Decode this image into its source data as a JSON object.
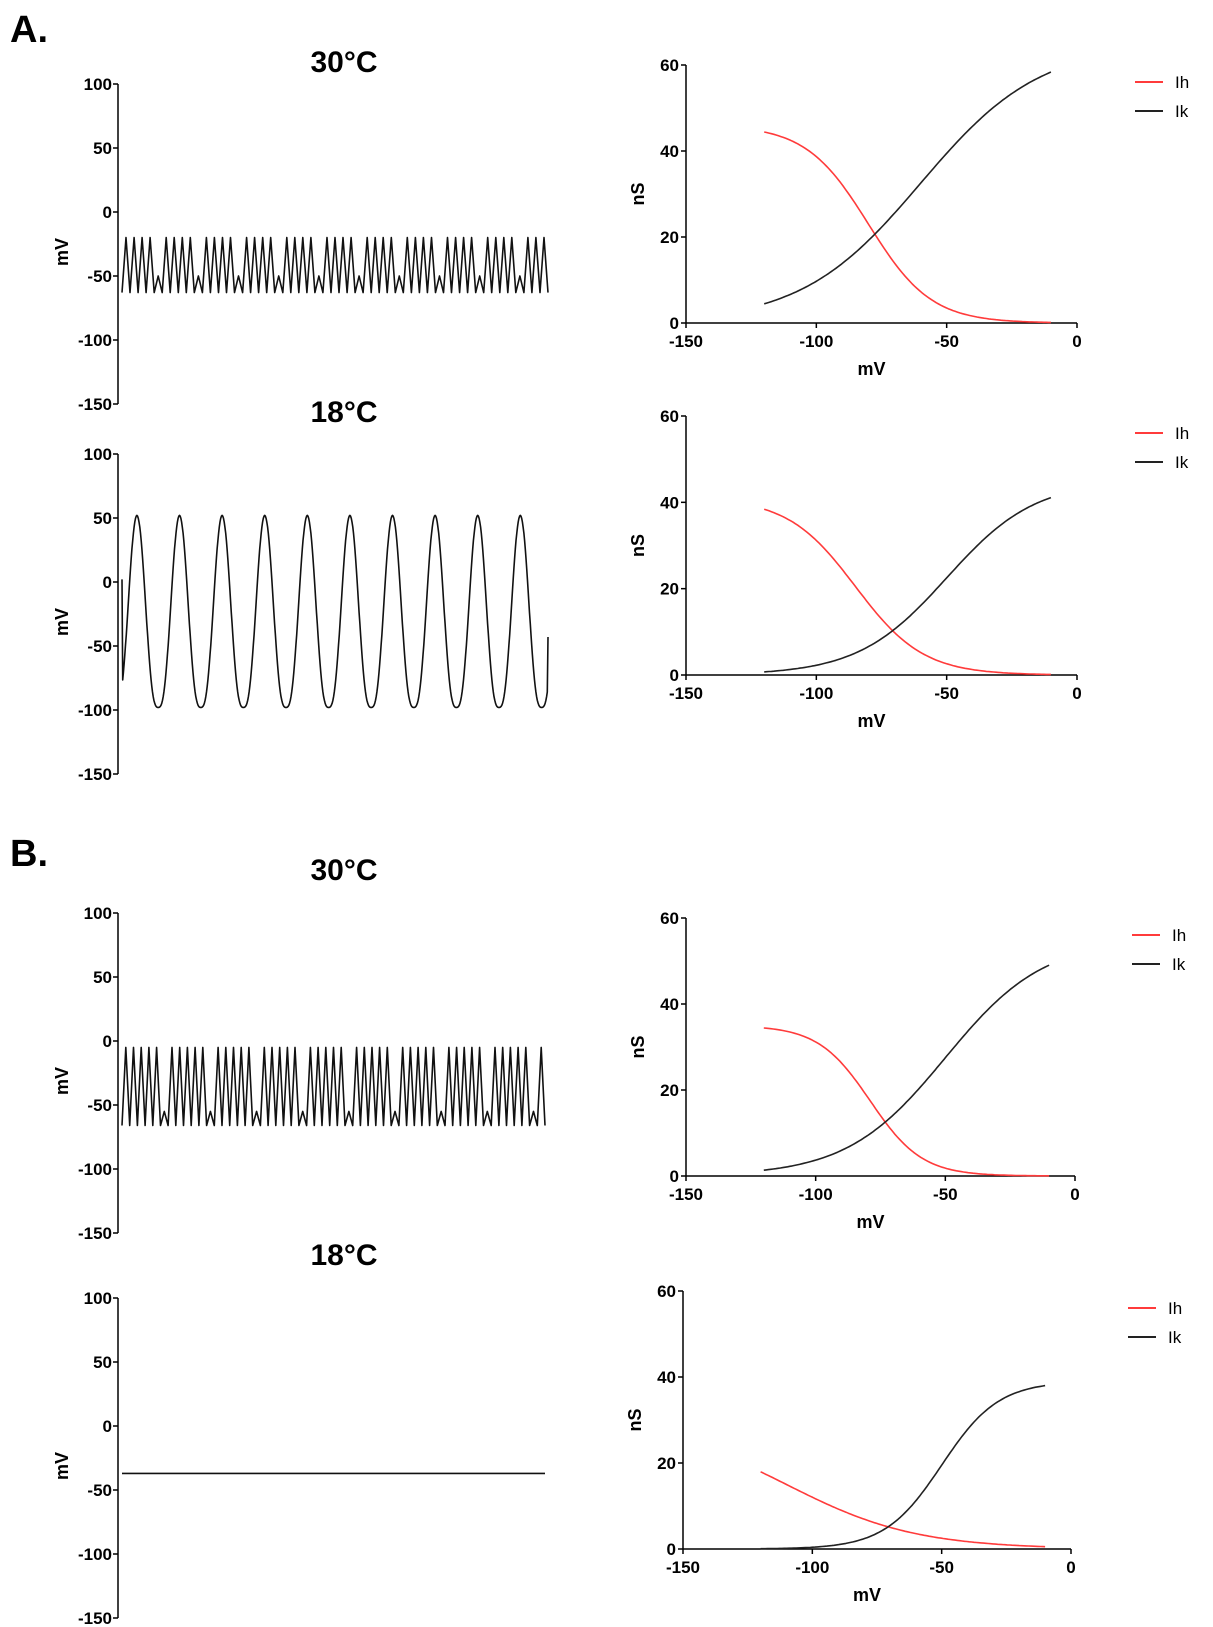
{
  "panel_labels": {
    "A": "A.",
    "B": "B."
  },
  "colors": {
    "Ih": "#ff3b3b",
    "Ik": "#222222",
    "trace": "#111111"
  },
  "chart_data": [
    {
      "id": "A-30-voltage",
      "type": "line",
      "title": "30°C",
      "xlabel": "",
      "ylabel": "mV",
      "ylim": [
        -150,
        100
      ],
      "yticks": [
        "100",
        "50",
        "0",
        "-50",
        "-100",
        "-150"
      ],
      "description_of_series": "membrane potential trace (no x axis shown)",
      "series": [
        {
          "kind": "bursting",
          "n_cycles": 53,
          "peak": -20,
          "trough": -63,
          "pause_level": -50,
          "pause_every": 5
        }
      ]
    },
    {
      "id": "A-18-voltage",
      "type": "line",
      "title": "18°C",
      "xlabel": "",
      "ylabel": "mV",
      "ylim": [
        -150,
        100
      ],
      "yticks": [
        "100",
        "50",
        "0",
        "-50",
        "-100",
        "-150"
      ],
      "series": [
        {
          "kind": "oscillation",
          "n_cycles": 10,
          "peak": 52,
          "trough": -98,
          "start": 2,
          "end": -43
        }
      ]
    },
    {
      "id": "B-30-voltage",
      "type": "line",
      "title": "30°C",
      "xlabel": "",
      "ylabel": "mV",
      "ylim": [
        -150,
        100
      ],
      "yticks": [
        "100",
        "50",
        "0",
        "-50",
        "-100",
        "-150"
      ],
      "series": [
        {
          "kind": "bursting",
          "n_cycles": 55,
          "peak": -5,
          "trough": -66,
          "pause_level": -55,
          "pause_every": 6
        }
      ]
    },
    {
      "id": "B-18-voltage",
      "type": "line",
      "title": "18°C",
      "xlabel": "",
      "ylabel": "mV",
      "ylim": [
        -150,
        100
      ],
      "yticks": [
        "100",
        "50",
        "0",
        "-50",
        "-100",
        "-150"
      ],
      "series": [
        {
          "kind": "flat",
          "value": -37
        }
      ]
    },
    {
      "id": "A-30-conductance",
      "type": "line",
      "xlabel": "mV",
      "ylabel": "nS",
      "xlim": [
        -150,
        0
      ],
      "ylim": [
        0,
        60
      ],
      "xticks": [
        "-150",
        "-100",
        "-50",
        "0"
      ],
      "yticks": [
        "60",
        "40",
        "20",
        "0"
      ],
      "legend": "top-right",
      "series": [
        {
          "name": "Ih",
          "x_range": [
            -120,
            -10
          ],
          "gmax": 46,
          "vhalf": -80,
          "slope": 12,
          "sign": -1
        },
        {
          "name": "Ik",
          "x_range": [
            -120,
            -10
          ],
          "gmax": 65,
          "vhalf": -60,
          "slope": 23,
          "sign": 1
        }
      ]
    },
    {
      "id": "A-18-conductance",
      "type": "line",
      "xlabel": "mV",
      "ylabel": "nS",
      "xlim": [
        -150,
        0
      ],
      "ylim": [
        0,
        60
      ],
      "xticks": [
        "-150",
        "-100",
        "-50",
        "0"
      ],
      "yticks": [
        "60",
        "40",
        "20",
        "0"
      ],
      "legend": "top-right",
      "series": [
        {
          "name": "Ih",
          "x_range": [
            -120,
            -10
          ],
          "gmax": 41,
          "vhalf": -85,
          "slope": 13,
          "sign": -1
        },
        {
          "name": "Ik",
          "x_range": [
            -120,
            -10
          ],
          "gmax": 45,
          "vhalf": -50,
          "slope": 17,
          "sign": 1
        }
      ]
    },
    {
      "id": "B-30-conductance",
      "type": "line",
      "xlabel": "mV",
      "ylabel": "nS",
      "xlim": [
        -150,
        0
      ],
      "ylim": [
        0,
        60
      ],
      "xticks": [
        "-150",
        "-100",
        "-50",
        "0"
      ],
      "yticks": [
        "60",
        "40",
        "20",
        "0"
      ],
      "legend": "top-right",
      "series": [
        {
          "name": "Ih",
          "x_range": [
            -120,
            -10
          ],
          "gmax": 35,
          "vhalf": -79,
          "slope": 10,
          "sign": -1
        },
        {
          "name": "Ik",
          "x_range": [
            -120,
            -10
          ],
          "gmax": 55,
          "vhalf": -50,
          "slope": 19,
          "sign": 1
        }
      ]
    },
    {
      "id": "B-18-conductance",
      "type": "line",
      "xlabel": "mV",
      "ylabel": "nS",
      "xlim": [
        -150,
        0
      ],
      "ylim": [
        0,
        60
      ],
      "xticks": [
        "-150",
        "-100",
        "-50",
        "0"
      ],
      "yticks": [
        "60",
        "40",
        "20",
        "0"
      ],
      "legend": "top-right",
      "series": [
        {
          "name": "Ih",
          "x_range": [
            -120,
            -10
          ],
          "gmax": 30,
          "vhalf": -110,
          "slope": 25,
          "sign": -1
        },
        {
          "name": "Ik",
          "x_range": [
            -120,
            -10
          ],
          "gmax": 39,
          "vhalf": -50,
          "slope": 11,
          "sign": 1
        }
      ]
    }
  ]
}
